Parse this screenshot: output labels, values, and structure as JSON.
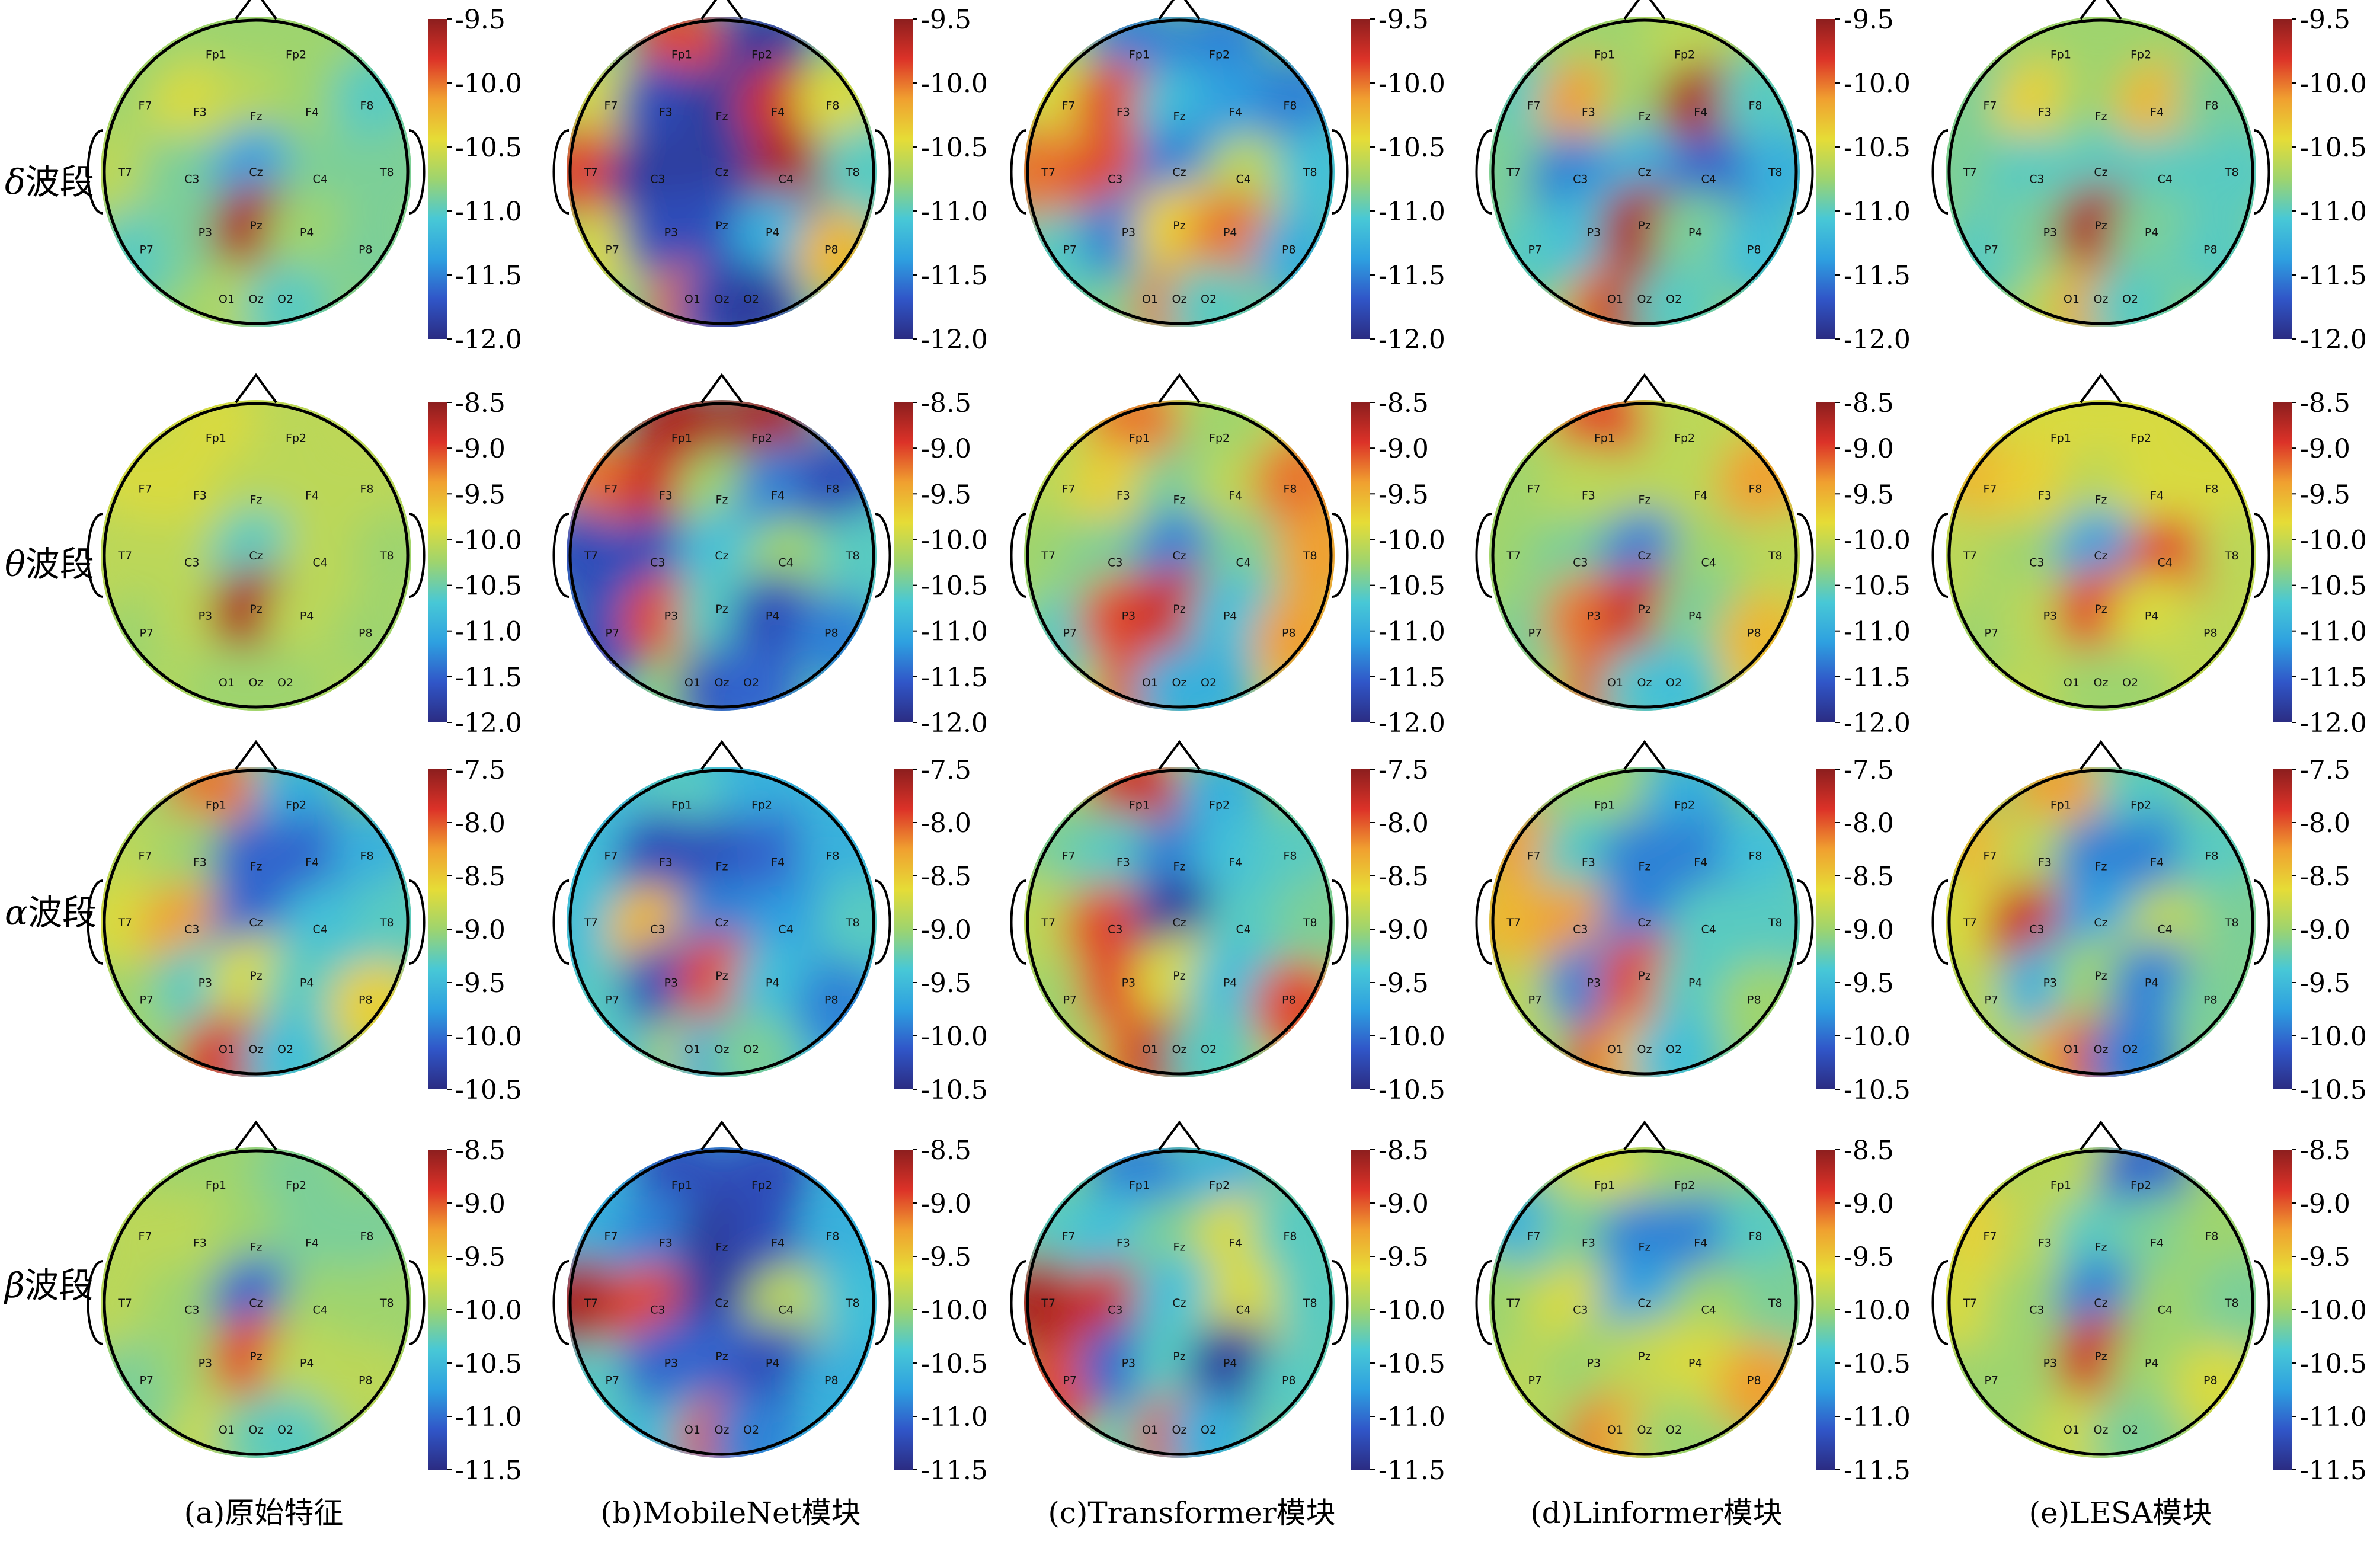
{
  "colormap": {
    "name": "jet",
    "stops": [
      "#00007f",
      "#0000ff",
      "#007fff",
      "#00ffff",
      "#7fff7f",
      "#ffff00",
      "#ff7f00",
      "#ff0000",
      "#7f0000"
    ],
    "display_stops": [
      "#2b2c82",
      "#3056c8",
      "#2ea0e0",
      "#48c8d6",
      "#9ed46e",
      "#e6dc36",
      "#f0a030",
      "#dc3228",
      "#8c1e1e"
    ],
    "head_outline_color": "#000000"
  },
  "rows": [
    {
      "greek": "δ",
      "suffix": "波段"
    },
    {
      "greek": "θ",
      "suffix": "波段"
    },
    {
      "greek": "α",
      "suffix": "波段"
    },
    {
      "greek": "β",
      "suffix": "波段"
    }
  ],
  "columns": [
    {
      "caption": "(a)原始特征"
    },
    {
      "caption": "(b)MobileNet模块"
    },
    {
      "caption": "(c)Transformer模块"
    },
    {
      "caption": "(d)Linformer模块"
    },
    {
      "caption": "(e)LESA模块"
    }
  ],
  "colorbars": [
    {
      "ticks": [
        "-9.5",
        "-10.0",
        "-10.5",
        "-11.0",
        "-11.5",
        "-12.0"
      ],
      "vmax": -9.5,
      "vmin": -12.0
    },
    {
      "ticks": [
        "-8.5",
        "-9.0",
        "-9.5",
        "-10.0",
        "-10.5",
        "-11.0",
        "-11.5",
        "-12.0"
      ],
      "vmax": -8.5,
      "vmin": -12.0
    },
    {
      "ticks": [
        "-7.5",
        "-8.0",
        "-8.5",
        "-9.0",
        "-9.5",
        "-10.0",
        "-10.5"
      ],
      "vmax": -7.5,
      "vmin": -10.5
    },
    {
      "ticks": [
        "-8.5",
        "-9.0",
        "-9.5",
        "-10.0",
        "-10.5",
        "-11.0",
        "-11.5"
      ],
      "vmax": -8.5,
      "vmin": -11.5
    }
  ],
  "electrodes": [
    "Fp1",
    "Fp2",
    "F7",
    "F3",
    "Fz",
    "F4",
    "F8",
    "T7",
    "C3",
    "Cz",
    "C4",
    "T8",
    "P7",
    "P3",
    "Pz",
    "P4",
    "P8",
    "O1",
    "Oz",
    "O2"
  ],
  "topomaps": [
    [
      {
        "Fp1": 0.5,
        "Fp2": 0.5,
        "F7": 0.5,
        "F3": 0.6,
        "Fz": 0.55,
        "F4": 0.5,
        "F8": 0.4,
        "T7": 0.55,
        "C3": 0.45,
        "Cz": 0.25,
        "C4": 0.45,
        "T8": 0.45,
        "P7": 0.4,
        "P3": 0.45,
        "Pz": 0.95,
        "P4": 0.5,
        "P8": 0.45,
        "O1": 0.5,
        "Oz": 0.55,
        "O2": 0.4
      },
      {
        "Fp1": 0.85,
        "Fp2": 0.05,
        "F7": 0.6,
        "F3": 0.1,
        "Fz": 0.05,
        "F4": 0.9,
        "F8": 0.6,
        "T7": 0.85,
        "C3": 0.05,
        "Cz": 0.05,
        "C4": 0.95,
        "T8": 0.4,
        "P7": 0.6,
        "P3": 0.1,
        "Pz": 0.1,
        "P4": 0.3,
        "P8": 0.7,
        "O1": 0.8,
        "Oz": 0.1,
        "O2": 0.05
      },
      {
        "Fp1": 0.2,
        "Fp2": 0.2,
        "F7": 0.6,
        "F3": 0.85,
        "Fz": 0.35,
        "F4": 0.25,
        "F8": 0.2,
        "T7": 0.8,
        "C3": 0.85,
        "Cz": 0.2,
        "C4": 0.55,
        "T8": 0.35,
        "P7": 0.4,
        "P3": 0.2,
        "Pz": 0.65,
        "P4": 0.8,
        "P8": 0.3,
        "O1": 0.45,
        "Oz": 0.8,
        "O2": 0.4
      },
      {
        "Fp1": 0.5,
        "Fp2": 0.55,
        "F7": 0.4,
        "F3": 0.75,
        "Fz": 0.5,
        "F4": 0.95,
        "F8": 0.4,
        "T7": 0.45,
        "C3": 0.2,
        "Cz": 0.3,
        "C4": 0.15,
        "T8": 0.3,
        "P7": 0.4,
        "P3": 0.35,
        "Pz": 0.95,
        "P4": 0.45,
        "P8": 0.35,
        "O1": 0.8,
        "Oz": 0.95,
        "O2": 0.4
      },
      {
        "Fp1": 0.5,
        "Fp2": 0.5,
        "F7": 0.45,
        "F3": 0.65,
        "Fz": 0.5,
        "F4": 0.7,
        "F8": 0.45,
        "T7": 0.45,
        "C3": 0.4,
        "Cz": 0.4,
        "C4": 0.4,
        "T8": 0.4,
        "P7": 0.4,
        "P3": 0.45,
        "Pz": 0.95,
        "P4": 0.45,
        "P8": 0.4,
        "O1": 0.55,
        "Oz": 0.75,
        "O2": 0.4
      }
    ],
    [
      {
        "Fp1": 0.6,
        "Fp2": 0.55,
        "F7": 0.6,
        "F3": 0.6,
        "Fz": 0.55,
        "F4": 0.55,
        "F8": 0.55,
        "T7": 0.55,
        "C3": 0.55,
        "Cz": 0.4,
        "C4": 0.55,
        "T8": 0.5,
        "P7": 0.5,
        "P3": 0.55,
        "Pz": 0.95,
        "P4": 0.55,
        "P8": 0.5,
        "O1": 0.5,
        "Oz": 0.5,
        "O2": 0.5
      },
      {
        "Fp1": 0.95,
        "Fp2": 0.95,
        "F7": 0.8,
        "F3": 0.9,
        "Fz": 0.5,
        "F4": 0.2,
        "F8": 0.1,
        "T7": 0.1,
        "C3": 0.1,
        "Cz": 0.35,
        "C4": 0.5,
        "T8": 0.4,
        "P7": 0.1,
        "P3": 0.85,
        "Pz": 0.4,
        "P4": 0.1,
        "P8": 0.2,
        "O1": 0.5,
        "Oz": 0.1,
        "O2": 0.15
      },
      {
        "Fp1": 0.8,
        "Fp2": 0.5,
        "F7": 0.55,
        "F3": 0.65,
        "Fz": 0.45,
        "F4": 0.55,
        "F8": 0.8,
        "T7": 0.5,
        "C3": 0.45,
        "Cz": 0.2,
        "C4": 0.45,
        "T8": 0.75,
        "P7": 0.4,
        "P3": 0.85,
        "Pz": 0.9,
        "P4": 0.35,
        "P8": 0.75,
        "O1": 0.85,
        "Oz": 0.3,
        "O2": 0.3
      },
      {
        "Fp1": 0.85,
        "Fp2": 0.55,
        "F7": 0.5,
        "F3": 0.55,
        "Fz": 0.55,
        "F4": 0.55,
        "F8": 0.75,
        "T7": 0.5,
        "C3": 0.45,
        "Cz": 0.2,
        "C4": 0.5,
        "T8": 0.55,
        "P7": 0.45,
        "P3": 0.8,
        "Pz": 0.9,
        "P4": 0.45,
        "P8": 0.7,
        "O1": 0.85,
        "Oz": 0.4,
        "O2": 0.35
      },
      {
        "Fp1": 0.6,
        "Fp2": 0.6,
        "F7": 0.7,
        "F3": 0.65,
        "Fz": 0.55,
        "F4": 0.6,
        "F8": 0.6,
        "T7": 0.55,
        "C3": 0.5,
        "Cz": 0.25,
        "C4": 0.85,
        "T8": 0.55,
        "P7": 0.5,
        "P3": 0.55,
        "Pz": 0.85,
        "P4": 0.6,
        "P8": 0.55,
        "O1": 0.55,
        "Oz": 0.5,
        "O2": 0.5
      }
    ],
    [
      {
        "Fp1": 0.8,
        "Fp2": 0.3,
        "F7": 0.55,
        "F3": 0.5,
        "Fz": 0.15,
        "F4": 0.15,
        "F8": 0.3,
        "T7": 0.6,
        "C3": 0.75,
        "Cz": 0.15,
        "C4": 0.35,
        "T8": 0.4,
        "P7": 0.5,
        "P3": 0.4,
        "Pz": 0.6,
        "P4": 0.4,
        "P8": 0.65,
        "O1": 0.85,
        "Oz": 0.9,
        "O2": 0.35
      },
      {
        "Fp1": 0.4,
        "Fp2": 0.3,
        "F7": 0.35,
        "F3": 0.1,
        "Fz": 0.1,
        "F4": 0.15,
        "F8": 0.3,
        "T7": 0.35,
        "C3": 0.7,
        "Cz": 0.2,
        "C4": 0.25,
        "T8": 0.4,
        "P7": 0.4,
        "P3": 0.1,
        "Pz": 0.85,
        "P4": 0.35,
        "P8": 0.2,
        "O1": 0.55,
        "Oz": 0.25,
        "O2": 0.45
      },
      {
        "Fp1": 0.9,
        "Fp2": 0.3,
        "F7": 0.45,
        "F3": 0.4,
        "Fz": 0.2,
        "F4": 0.35,
        "F8": 0.4,
        "T7": 0.55,
        "C3": 0.85,
        "Cz": 0.05,
        "C4": 0.4,
        "T8": 0.45,
        "P7": 0.5,
        "P3": 0.85,
        "Pz": 0.6,
        "P4": 0.35,
        "P8": 0.85,
        "O1": 0.8,
        "Oz": 0.95,
        "O2": 0.4
      },
      {
        "Fp1": 0.5,
        "Fp2": 0.3,
        "F7": 0.75,
        "F3": 0.4,
        "Fz": 0.2,
        "F4": 0.2,
        "F8": 0.35,
        "T7": 0.7,
        "C3": 0.75,
        "Cz": 0.2,
        "C4": 0.4,
        "T8": 0.4,
        "P7": 0.55,
        "P3": 0.2,
        "Pz": 0.85,
        "P4": 0.4,
        "P8": 0.5,
        "O1": 0.85,
        "Oz": 0.7,
        "O2": 0.35
      },
      {
        "Fp1": 0.75,
        "Fp2": 0.4,
        "F7": 0.7,
        "F3": 0.55,
        "Fz": 0.2,
        "F4": 0.2,
        "F8": 0.4,
        "T7": 0.6,
        "C3": 0.9,
        "Cz": 0.25,
        "C4": 0.55,
        "T8": 0.45,
        "P7": 0.55,
        "P3": 0.3,
        "Pz": 0.5,
        "P4": 0.2,
        "P8": 0.45,
        "O1": 0.7,
        "Oz": 0.85,
        "O2": 0.2
      }
    ],
    [
      {
        "Fp1": 0.5,
        "Fp2": 0.45,
        "F7": 0.55,
        "F3": 0.55,
        "Fz": 0.5,
        "F4": 0.45,
        "F8": 0.45,
        "T7": 0.55,
        "C3": 0.5,
        "Cz": 0.15,
        "C4": 0.5,
        "T8": 0.5,
        "P7": 0.45,
        "P3": 0.5,
        "Pz": 0.85,
        "P4": 0.55,
        "P8": 0.55,
        "O1": 0.6,
        "Oz": 0.45,
        "O2": 0.4
      },
      {
        "Fp1": 0.1,
        "Fp2": 0.1,
        "F7": 0.3,
        "F3": 0.2,
        "Fz": 0.05,
        "F4": 0.1,
        "F8": 0.3,
        "T7": 0.95,
        "C3": 0.85,
        "Cz": 0.05,
        "C4": 0.55,
        "T8": 0.35,
        "P7": 0.4,
        "P3": 0.15,
        "Pz": 0.15,
        "P4": 0.1,
        "P8": 0.3,
        "O1": 0.35,
        "Oz": 0.85,
        "O2": 0.2
      },
      {
        "Fp1": 0.2,
        "Fp2": 0.3,
        "F7": 0.4,
        "F3": 0.35,
        "Fz": 0.45,
        "F4": 0.6,
        "F8": 0.4,
        "T7": 0.95,
        "C3": 0.9,
        "Cz": 0.35,
        "C4": 0.6,
        "T8": 0.4,
        "P7": 0.85,
        "P3": 0.15,
        "Pz": 0.4,
        "P4": 0.05,
        "P8": 0.4,
        "O1": 0.4,
        "Oz": 0.85,
        "O2": 0.3
      },
      {
        "Fp1": 0.6,
        "Fp2": 0.5,
        "F7": 0.3,
        "F3": 0.45,
        "Fz": 0.2,
        "F4": 0.2,
        "F8": 0.4,
        "T7": 0.5,
        "C3": 0.6,
        "Cz": 0.25,
        "C4": 0.5,
        "T8": 0.45,
        "P7": 0.55,
        "P3": 0.5,
        "Pz": 0.55,
        "P4": 0.6,
        "P8": 0.75,
        "O1": 0.8,
        "Oz": 0.7,
        "O2": 0.5
      },
      {
        "Fp1": 0.55,
        "Fp2": 0.15,
        "F7": 0.65,
        "F3": 0.55,
        "Fz": 0.4,
        "F4": 0.45,
        "F8": 0.5,
        "T7": 0.6,
        "C3": 0.5,
        "Cz": 0.2,
        "C4": 0.5,
        "T8": 0.45,
        "P7": 0.5,
        "P3": 0.5,
        "Pz": 0.9,
        "P4": 0.5,
        "P8": 0.6,
        "O1": 0.55,
        "Oz": 0.6,
        "O2": 0.45
      }
    ]
  ]
}
